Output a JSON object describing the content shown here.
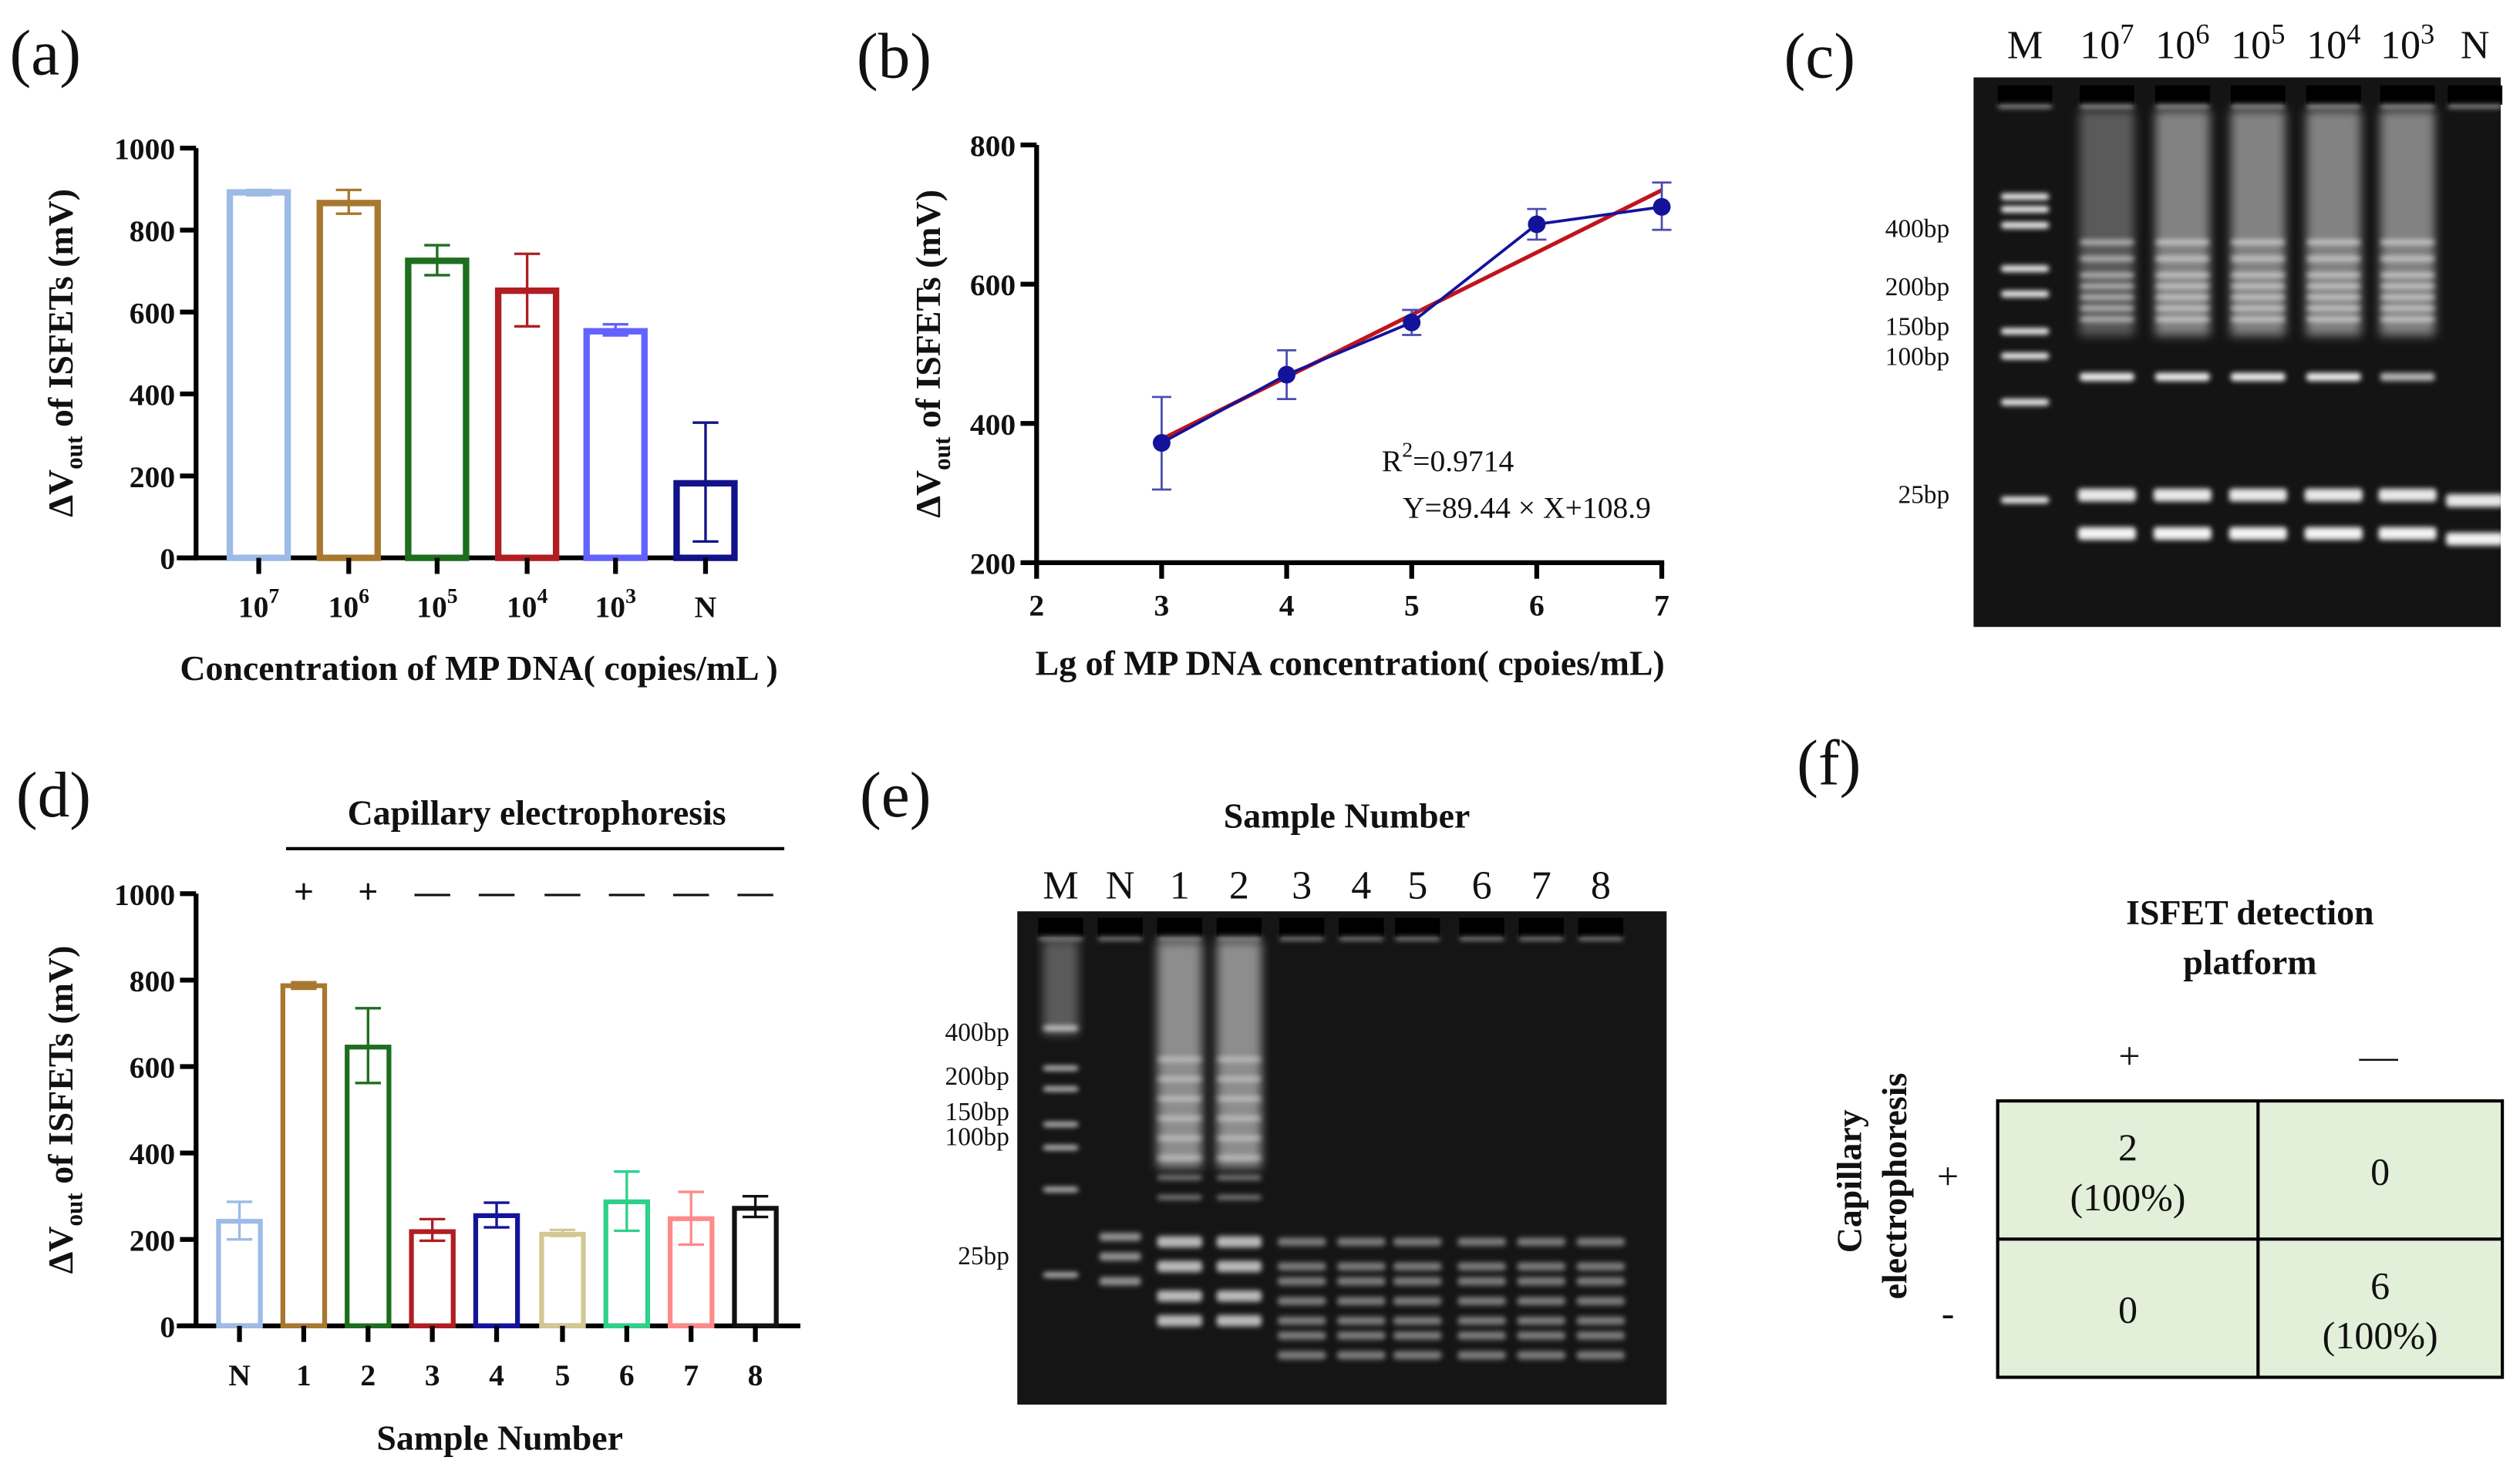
{
  "panels": {
    "a": "(a)",
    "b": "(b)",
    "c": "(c)",
    "d": "(d)",
    "e": "(e)",
    "f": "(f)"
  },
  "chart_data": [
    {
      "panel": "a",
      "type": "bar",
      "categories": [
        {
          "base": "10",
          "sup": "7"
        },
        {
          "base": "10",
          "sup": "6"
        },
        {
          "base": "10",
          "sup": "5"
        },
        {
          "base": "10",
          "sup": "4"
        },
        {
          "base": "10",
          "sup": "3"
        },
        {
          "base": "N",
          "sup": ""
        }
      ],
      "values": [
        892,
        866,
        725,
        652,
        553,
        182
      ],
      "errors": [
        [
          885,
          898
        ],
        [
          840,
          898
        ],
        [
          690,
          763
        ],
        [
          565,
          742
        ],
        [
          543,
          570
        ],
        [
          40,
          330
        ]
      ],
      "colors": [
        "#9dbbe6",
        "#a8782f",
        "#1d6e1d",
        "#b01e22",
        "#6262ff",
        "#12128a"
      ],
      "ylim": [
        0,
        1000
      ],
      "yticks": [
        0,
        200,
        400,
        600,
        800,
        1000
      ],
      "xlabel": "Concentration of MP DNA( copies/mL )",
      "ylabel": {
        "main": "ΔV",
        "sub": "out",
        "rest": " of ISFETs (mV)"
      }
    },
    {
      "panel": "b",
      "type": "line",
      "x": [
        3,
        4,
        5,
        6,
        7
      ],
      "y": [
        372,
        470,
        545,
        686,
        711
      ],
      "errors": [
        [
          305,
          438
        ],
        [
          435,
          505
        ],
        [
          527,
          563
        ],
        [
          664,
          708
        ],
        [
          678,
          746
        ]
      ],
      "fit": {
        "slope": 89.44,
        "intercept": 108.9,
        "x_range": [
          3,
          7
        ]
      },
      "series_color": "#13139a",
      "fit_color": "#c0141c",
      "xlim": [
        2,
        7
      ],
      "ylim": [
        200,
        800
      ],
      "xticks": [
        2,
        3,
        4,
        5,
        6,
        7
      ],
      "yticks": [
        200,
        400,
        600,
        800
      ],
      "r2_label": {
        "base": "R",
        "sup": "2",
        "value": "=0.9714"
      },
      "equation": "Y=89.44 × X+108.9",
      "xlabel": "Lg of MP DNA concentration( cpoies/mL)",
      "ylabel": {
        "main": "ΔV",
        "sub": "out",
        "rest": " of ISFETs (mV)"
      }
    },
    {
      "panel": "d",
      "type": "bar",
      "categories": [
        {
          "base": "N",
          "sup": ""
        },
        {
          "base": "1",
          "sup": ""
        },
        {
          "base": "2",
          "sup": ""
        },
        {
          "base": "3",
          "sup": ""
        },
        {
          "base": "4",
          "sup": ""
        },
        {
          "base": "5",
          "sup": ""
        },
        {
          "base": "6",
          "sup": ""
        },
        {
          "base": "7",
          "sup": ""
        },
        {
          "base": "8",
          "sup": ""
        }
      ],
      "values": [
        242,
        787,
        645,
        218,
        255,
        212,
        287,
        248,
        272
      ],
      "errors": [
        [
          200,
          287
        ],
        [
          780,
          795
        ],
        [
          562,
          735
        ],
        [
          197,
          247
        ],
        [
          228,
          285
        ],
        [
          208,
          222
        ],
        [
          220,
          357
        ],
        [
          188,
          310
        ],
        [
          252,
          300
        ]
      ],
      "colors": [
        "#9dbbe6",
        "#a8782f",
        "#1d6e1d",
        "#b01e22",
        "#14149a",
        "#d2c894",
        "#2fd08a",
        "#ff8a8a",
        "#111111"
      ],
      "ylim": [
        0,
        1000
      ],
      "yticks": [
        0,
        200,
        400,
        600,
        800,
        1000
      ],
      "group_title": "Capillary electrophoresis",
      "group_signs": [
        "",
        "+",
        "+",
        "—",
        "—",
        "—",
        "—",
        "—",
        "—"
      ],
      "xlabel": "Sample Number",
      "ylabel": {
        "main": "ΔV",
        "sub": "out",
        "rest": " of ISFETs (mV)"
      }
    },
    {
      "panel": "f",
      "type": "table",
      "col_title": [
        "ISFET detection",
        "platform"
      ],
      "col_headers": [
        "+",
        "—"
      ],
      "row_title": [
        "Capillary",
        "electrophoresis"
      ],
      "row_headers": [
        "+",
        "-"
      ],
      "cells": [
        [
          [
            "2",
            "(100%)"
          ],
          [
            "0"
          ]
        ],
        [
          [
            "0"
          ],
          [
            "6",
            "(100%)"
          ]
        ]
      ],
      "fill": "#e2efd9"
    }
  ],
  "gel_c": {
    "lanes": [
      {
        "base": "M",
        "sup": ""
      },
      {
        "base": "10",
        "sup": "7"
      },
      {
        "base": "10",
        "sup": "6"
      },
      {
        "base": "10",
        "sup": "5"
      },
      {
        "base": "10",
        "sup": "4"
      },
      {
        "base": "10",
        "sup": "3"
      },
      {
        "base": "N",
        "sup": ""
      }
    ],
    "markers": [
      "400bp",
      "200bp",
      "150bp",
      "100bp",
      "25bp"
    ]
  },
  "gel_e": {
    "title": "Sample Number",
    "lanes": [
      "M",
      "N",
      "1",
      "2",
      "3",
      "4",
      "5",
      "6",
      "7",
      "8"
    ],
    "markers": [
      "400bp",
      "200bp",
      "150bp",
      "100bp",
      "25bp"
    ]
  }
}
